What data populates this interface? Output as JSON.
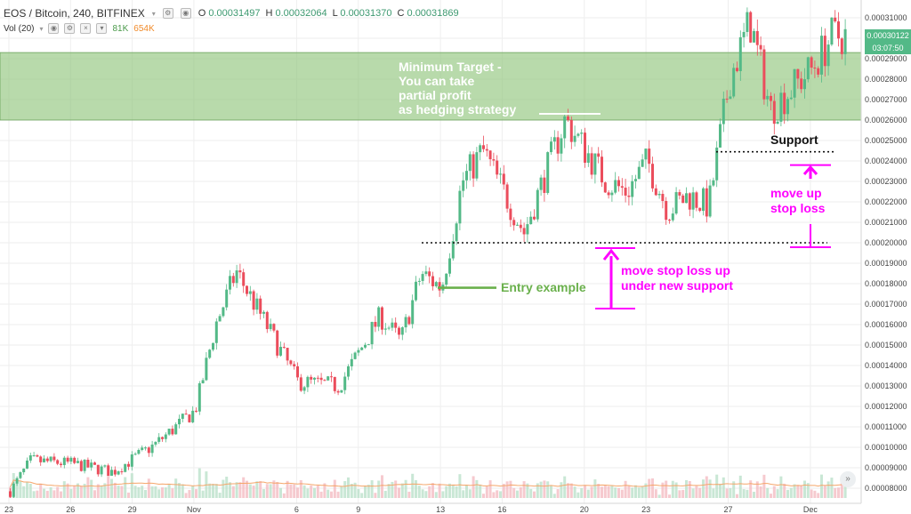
{
  "header": {
    "symbol": "EOS / Bitcoin, 240, BITFINEX",
    "ohlc": [
      {
        "key": "O",
        "value": "0.00031497"
      },
      {
        "key": "H",
        "value": "0.00032064"
      },
      {
        "key": "L",
        "value": "0.00031370"
      },
      {
        "key": "C",
        "value": "0.00031869"
      }
    ],
    "volume_label": "Vol (20)",
    "volume_a": "81K",
    "volume_b": "654K"
  },
  "price_tag": {
    "price": "0.00030122",
    "countdown": "03:07:50"
  },
  "colors": {
    "up": "#53b987",
    "down": "#eb4d5c",
    "target_zone": "#8cc477",
    "annotation_magenta": "#ff00ff",
    "entry_green": "#6ab04c",
    "volume_ma": "#f5a66a"
  },
  "chart_data": {
    "type": "candlestick",
    "y_axis": {
      "range": [
        7.5e-05,
        0.00032
      ],
      "ticks": [
        "0.00031000",
        "0.00030000",
        "0.00029000",
        "0.00028000",
        "0.00027000",
        "0.00026000",
        "0.00025000",
        "0.00024000",
        "0.00023000",
        "0.00022000",
        "0.00021000",
        "0.00020000",
        "0.00019000",
        "0.00018000",
        "0.00017000",
        "0.00016000",
        "0.00015000",
        "0.00014000",
        "0.00013000",
        "0.00012000",
        "0.00011000",
        "0.00010000",
        "0.00009000",
        "0.00008000"
      ]
    },
    "x_axis": {
      "ticks": [
        "23",
        "26",
        "29",
        "Nov",
        "6",
        "9",
        "13",
        "16",
        "20",
        "23",
        "27",
        "Dec"
      ]
    },
    "price_path": [
      {
        "date": "Oct 23",
        "price": 7.85e-05
      },
      {
        "date": "Oct 24",
        "price": 9.35e-05
      },
      {
        "date": "Oct 26",
        "price": 9.2e-05
      },
      {
        "date": "Oct 28",
        "price": 8.8e-05
      },
      {
        "date": "Oct 30",
        "price": 0.000101
      },
      {
        "date": "Nov 1",
        "price": 0.000118
      },
      {
        "date": "Nov 2",
        "price": 0.00016
      },
      {
        "date": "Nov 3",
        "price": 0.000186
      },
      {
        "date": "Nov 5",
        "price": 0.00015
      },
      {
        "date": "Nov 6",
        "price": 0.000132
      },
      {
        "date": "Nov 8",
        "price": 0.00013
      },
      {
        "date": "Nov 10",
        "price": 0.000164
      },
      {
        "date": "Nov 11",
        "price": 0.000152
      },
      {
        "date": "Nov 12",
        "price": 0.000185
      },
      {
        "date": "Nov 13",
        "price": 0.000178
      },
      {
        "date": "Nov 14",
        "price": 0.00023
      },
      {
        "date": "Nov 15",
        "price": 0.000245
      },
      {
        "date": "Nov 17",
        "price": 0.000205
      },
      {
        "date": "Nov 19",
        "price": 0.00026
      },
      {
        "date": "Nov 20",
        "price": 0.000245
      },
      {
        "date": "Nov 21",
        "price": 0.00023
      },
      {
        "date": "Nov 22",
        "price": 0.000225
      },
      {
        "date": "Nov 23",
        "price": 0.00024
      },
      {
        "date": "Nov 24",
        "price": 0.000216
      },
      {
        "date": "Nov 25",
        "price": 0.000223
      },
      {
        "date": "Nov 26",
        "price": 0.000218
      },
      {
        "date": "Nov 27",
        "price": 0.00028
      },
      {
        "date": "Nov 28",
        "price": 0.000308
      },
      {
        "date": "Nov 29",
        "price": 0.000265
      },
      {
        "date": "Dec 1",
        "price": 0.000285
      },
      {
        "date": "Dec 2",
        "price": 0.000301
      }
    ],
    "target_zone": {
      "from": 0.00026,
      "to": 0.000293
    },
    "levels": {
      "support_upper": 0.0002445,
      "support_lower": 0.0002,
      "entry": 0.000178,
      "new_stop_bottom": 0.000167,
      "stop_upper_from": 0.000238
    }
  },
  "annotations": {
    "target_text": [
      "Minimum Target -",
      "You can take",
      "partial profit",
      "as hedging strategy"
    ],
    "support": "Support",
    "move_up_stop_loss": [
      "move up",
      "stop loss"
    ],
    "move_stop_loss_new_support": [
      "move stop loss up",
      "under new support"
    ],
    "entry_example": "Entry example"
  },
  "scroll_button": "»"
}
